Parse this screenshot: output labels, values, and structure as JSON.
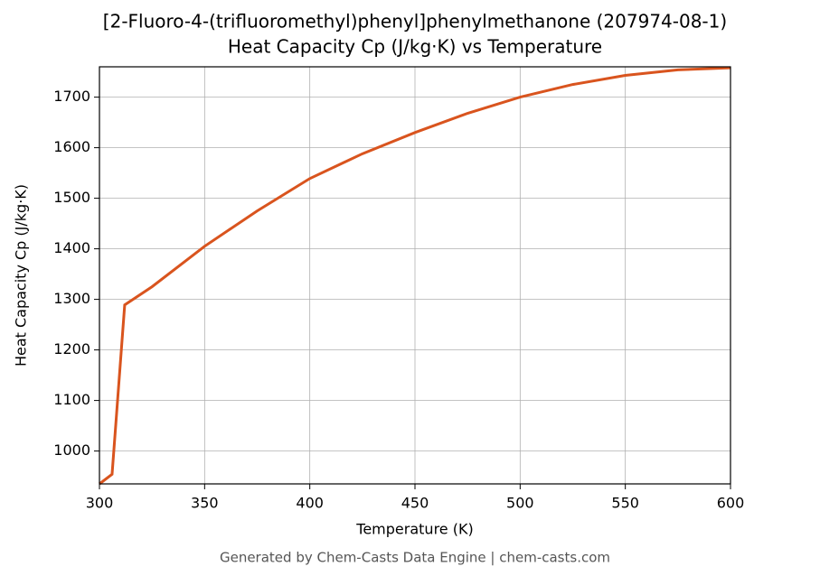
{
  "chart_data": {
    "type": "line",
    "title": "[2-Fluoro-4-(trifluoromethyl)phenyl]phenylmethanone (207974-08-1)",
    "subtitle": "Heat Capacity Cp (J/kg·K) vs Temperature",
    "x_label": "Temperature (K)",
    "y_label": "Heat Capacity Cp (J/kg·K)",
    "footer": "Generated by Chem-Casts Data Engine | chem-casts.com",
    "x": [
      300,
      306,
      312,
      325,
      350,
      375,
      400,
      425,
      450,
      475,
      500,
      525,
      550,
      575,
      600
    ],
    "series": [
      {
        "name": "Cp",
        "color": "#d9541e",
        "values": [
          935,
          954,
          1289,
          1325,
          1405,
          1475,
          1539,
          1588,
          1630,
          1668,
          1700,
          1725,
          1743,
          1754,
          1758
        ]
      }
    ],
    "xlim": [
      300,
      600
    ],
    "xticks": [
      300,
      350,
      400,
      450,
      500,
      550,
      600
    ],
    "ylim": [
      935,
      1760
    ],
    "yticks": [
      1000,
      1100,
      1200,
      1300,
      1400,
      1500,
      1600,
      1700
    ],
    "grid": true
  }
}
